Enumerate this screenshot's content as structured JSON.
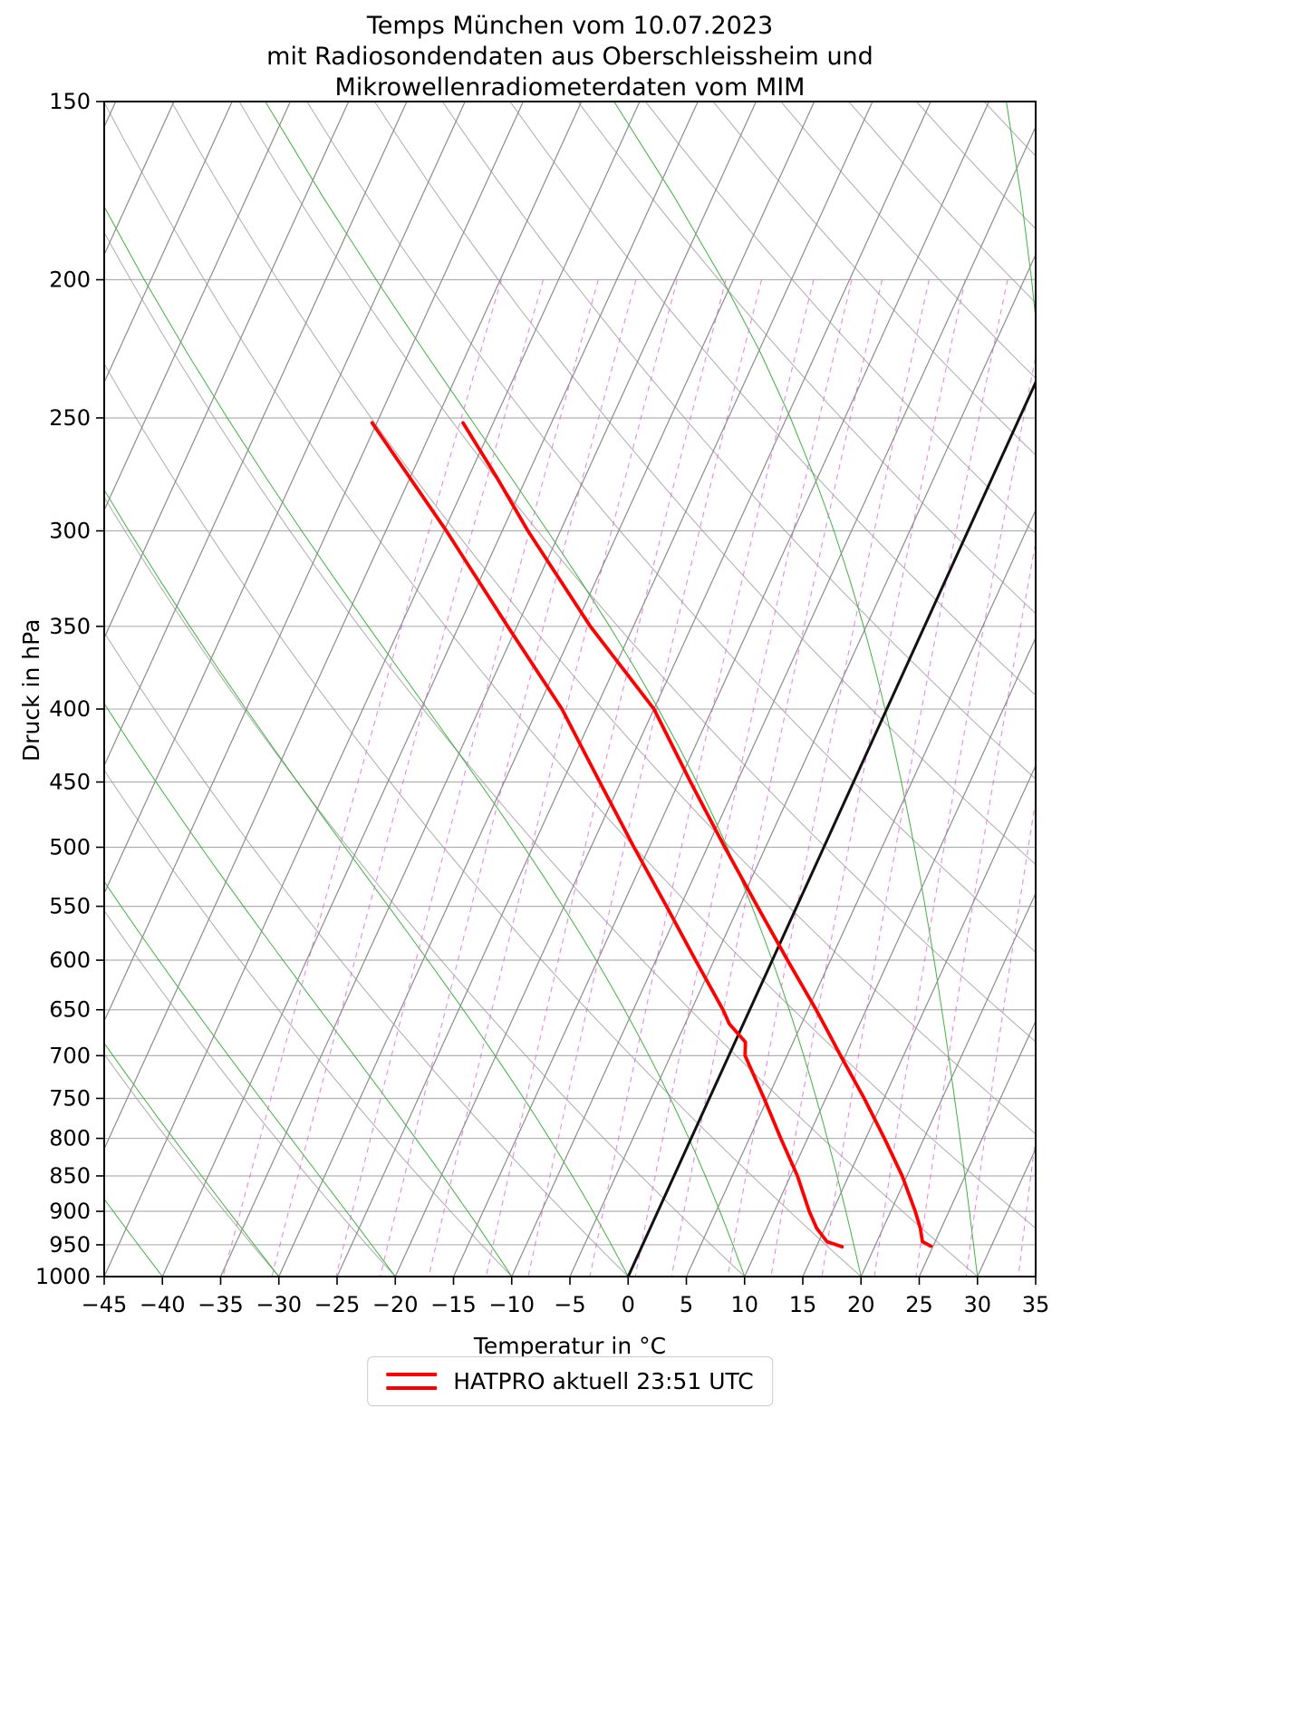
{
  "title": {
    "line1": "Temps München vom 10.07.2023",
    "line2": "mit Radiosondendaten aus Oberschleissheim und",
    "line3": "Mikrowellenradiometerdaten vom MIM"
  },
  "axes": {
    "x_label": "Temperatur in °C",
    "y_label": "Druck in hPa",
    "x_ticks": [
      -45,
      -40,
      -35,
      -30,
      -25,
      -20,
      -15,
      -10,
      -5,
      0,
      5,
      10,
      15,
      20,
      25,
      30,
      35
    ],
    "y_ticks": [
      150,
      200,
      250,
      300,
      350,
      400,
      450,
      500,
      550,
      600,
      650,
      700,
      750,
      800,
      850,
      900,
      950,
      1000
    ]
  },
  "legend": {
    "label": "HATPRO aktuell 23:51 UTC",
    "color": "#ff0000"
  },
  "colors": {
    "temperature_curve": "#ff0000",
    "zero_isotherm": "#111111",
    "isotherm": "#8c8c8c",
    "isobar": "#b0b0b0",
    "dry_adiabat": "#999999",
    "moist_adiabat": "#1fa51f",
    "mixing_ratio": "#e060e0",
    "frame": "#000000"
  },
  "chart_data": {
    "type": "line",
    "subtype": "skew-t-log-p",
    "title": "Temps München vom 10.07.2023 mit Radiosondendaten aus Oberschleissheim und Mikrowellenradiometerdaten vom MIM",
    "xlabel": "Temperatur in °C",
    "ylabel": "Druck in hPa",
    "x_range": [
      -45,
      35
    ],
    "pressure_range": [
      150,
      1000
    ],
    "y_scale": "log",
    "grid": true,
    "legend_position": "bottom-center",
    "skew_factor": 0.456,
    "zero_isotherm": {
      "temperature_c": 0
    },
    "background": {
      "isotherms_c": {
        "min": -120,
        "max": 40,
        "step": 5
      },
      "dry_adiabats_c": {
        "min": -30,
        "max": 200,
        "step": 10
      },
      "moist_adiabats_c": {
        "min": -60,
        "max": 40,
        "step": 10
      },
      "mixing_ratio_g_kg": [
        0.2,
        0.3,
        0.5,
        0.7,
        1,
        1.5,
        2,
        3,
        4,
        5,
        7,
        9,
        12,
        16,
        20,
        26,
        34
      ],
      "mixing_ratio_top_hpa": 200
    },
    "series": [
      {
        "name": "hatpro-temperature",
        "label": "HATPRO aktuell 23:51 UTC",
        "color": "#ff0000",
        "points": [
          [
            952,
            24.8
          ],
          [
            945,
            23.9
          ],
          [
            925,
            23.2
          ],
          [
            900,
            22.1
          ],
          [
            850,
            19.6
          ],
          [
            800,
            16.6
          ],
          [
            750,
            13.3
          ],
          [
            700,
            9.6
          ],
          [
            675,
            7.7
          ],
          [
            650,
            5.7
          ],
          [
            600,
            1.3
          ],
          [
            550,
            -3.4
          ],
          [
            500,
            -8.5
          ],
          [
            450,
            -14.0
          ],
          [
            400,
            -20.0
          ],
          [
            350,
            -28.7
          ],
          [
            300,
            -37.8
          ],
          [
            275,
            -42.6
          ],
          [
            252,
            -47.6
          ]
        ]
      },
      {
        "name": "hatpro-dewpoint",
        "label": "HATPRO aktuell 23:51 UTC",
        "color": "#ff0000",
        "points": [
          [
            953,
            17.2
          ],
          [
            945,
            15.7
          ],
          [
            925,
            14.3
          ],
          [
            900,
            13.0
          ],
          [
            850,
            10.6
          ],
          [
            800,
            7.7
          ],
          [
            750,
            4.7
          ],
          [
            700,
            1.4
          ],
          [
            685,
            0.9
          ],
          [
            665,
            -1.2
          ],
          [
            650,
            -2.3
          ],
          [
            600,
            -6.6
          ],
          [
            550,
            -11.2
          ],
          [
            500,
            -16.3
          ],
          [
            450,
            -21.8
          ],
          [
            400,
            -27.9
          ],
          [
            350,
            -35.8
          ],
          [
            300,
            -44.8
          ],
          [
            252,
            -55.4
          ]
        ]
      }
    ]
  }
}
